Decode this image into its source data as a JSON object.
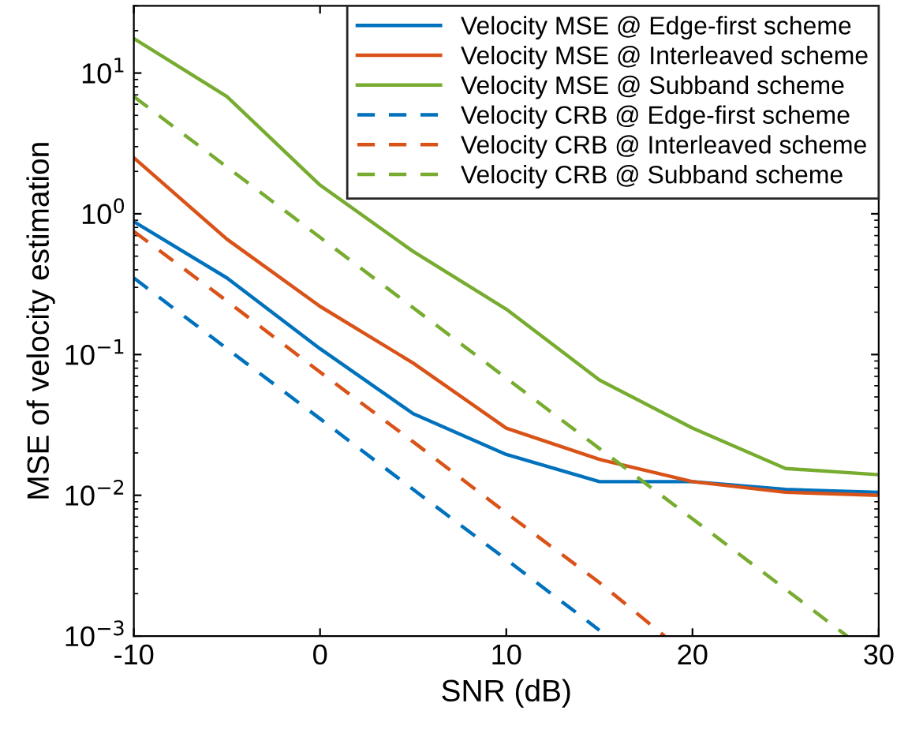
{
  "chart_data": {
    "type": "line",
    "xlabel": "SNR (dB)",
    "ylabel": "MSE of velocity estimation",
    "xlim": [
      -10,
      30
    ],
    "xticks": [
      -10,
      0,
      10,
      20,
      30
    ],
    "ylim": [
      0.001,
      30
    ],
    "yticks": [
      {
        "value": 0.001,
        "label": "10$^{−3}$"
      },
      {
        "value": 0.01,
        "label": "10$^{−2}$"
      },
      {
        "value": 0.1,
        "label": "10$^{−1}$"
      },
      {
        "value": 1,
        "label": "10$^{0}$"
      },
      {
        "value": 10,
        "label": "10$^{1}$"
      }
    ],
    "log": "y",
    "grid": false,
    "legend": "top right",
    "series": [
      {
        "name": "Velocity MSE @ Edge-first scheme",
        "color": "#0072bd",
        "line_style": "solid",
        "x": [
          -10,
          -5,
          0,
          5,
          10,
          15,
          20,
          25,
          30
        ],
        "values": [
          0.88,
          0.35,
          0.11,
          0.038,
          0.0195,
          0.0125,
          0.0125,
          0.011,
          0.0105
        ]
      },
      {
        "name": "Velocity MSE @ Interleaved scheme",
        "color": "#d95319",
        "line_style": "solid",
        "x": [
          -10,
          -5,
          0,
          5,
          10,
          15,
          20,
          25,
          30
        ],
        "values": [
          2.5,
          0.66,
          0.22,
          0.087,
          0.03,
          0.018,
          0.0125,
          0.0105,
          0.01
        ]
      },
      {
        "name": "Velocity MSE @ Subband scheme",
        "color": "#77ac30",
        "line_style": "solid",
        "x": [
          -10,
          -5,
          0,
          5,
          10,
          15,
          20,
          25,
          30
        ],
        "values": [
          17.6,
          6.8,
          1.6,
          0.54,
          0.21,
          0.066,
          0.03,
          0.0155,
          0.014
        ]
      },
      {
        "name": "Velocity CRB @ Edge-first scheme",
        "color": "#0072bd",
        "line_style": "dashed",
        "x": [
          -10,
          -5,
          0,
          5,
          10,
          15
        ],
        "values": [
          0.35,
          0.11,
          0.035,
          0.011,
          0.0035,
          0.0011
        ]
      },
      {
        "name": "Velocity CRB @ Interleaved scheme",
        "color": "#d95319",
        "line_style": "dashed",
        "x": [
          -10,
          -5,
          0,
          5,
          10,
          15,
          18.5
        ],
        "values": [
          0.75,
          0.24,
          0.075,
          0.024,
          0.0075,
          0.0024,
          0.001
        ]
      },
      {
        "name": "Velocity CRB @ Subband scheme",
        "color": "#77ac30",
        "line_style": "dashed",
        "x": [
          -10,
          -5,
          0,
          5,
          10,
          15,
          20,
          25,
          28.3
        ],
        "values": [
          6.8,
          2.15,
          0.68,
          0.215,
          0.068,
          0.0215,
          0.0068,
          0.00215,
          0.001
        ]
      }
    ]
  }
}
